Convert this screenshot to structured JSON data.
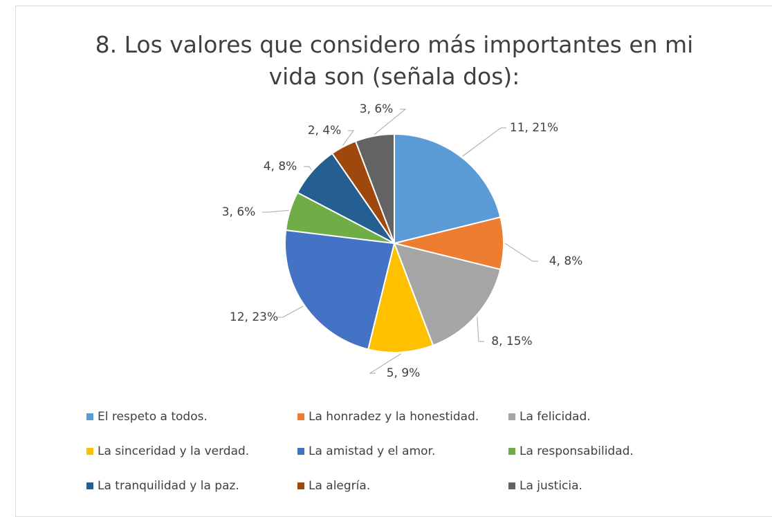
{
  "chart_data": {
    "type": "pie",
    "title": "8. Los valores que considero más importantes en mi vida son (señala dos):",
    "categories": [
      "El respeto a todos.",
      "La honradez y la honestidad.",
      "La felicidad.",
      "La sinceridad y la verdad.",
      "La amistad y el amor.",
      "La responsabilidad.",
      "La tranquilidad y la paz.",
      "La alegría.",
      "La justicia."
    ],
    "values": [
      11,
      4,
      8,
      5,
      12,
      3,
      4,
      2,
      3
    ],
    "value_labels": [
      "11, 21%",
      "4, 8%",
      "8, 15%",
      "5, 9%",
      "12, 23%",
      "3, 6%",
      "4, 8%",
      "2, 4%",
      "3, 6%"
    ],
    "colors": [
      "#5b9bd5",
      "#ed7d31",
      "#a5a5a5",
      "#ffc000",
      "#4472c4",
      "#70ad47",
      "#255e91",
      "#9e480e",
      "#636363"
    ],
    "legend": "bottom"
  }
}
